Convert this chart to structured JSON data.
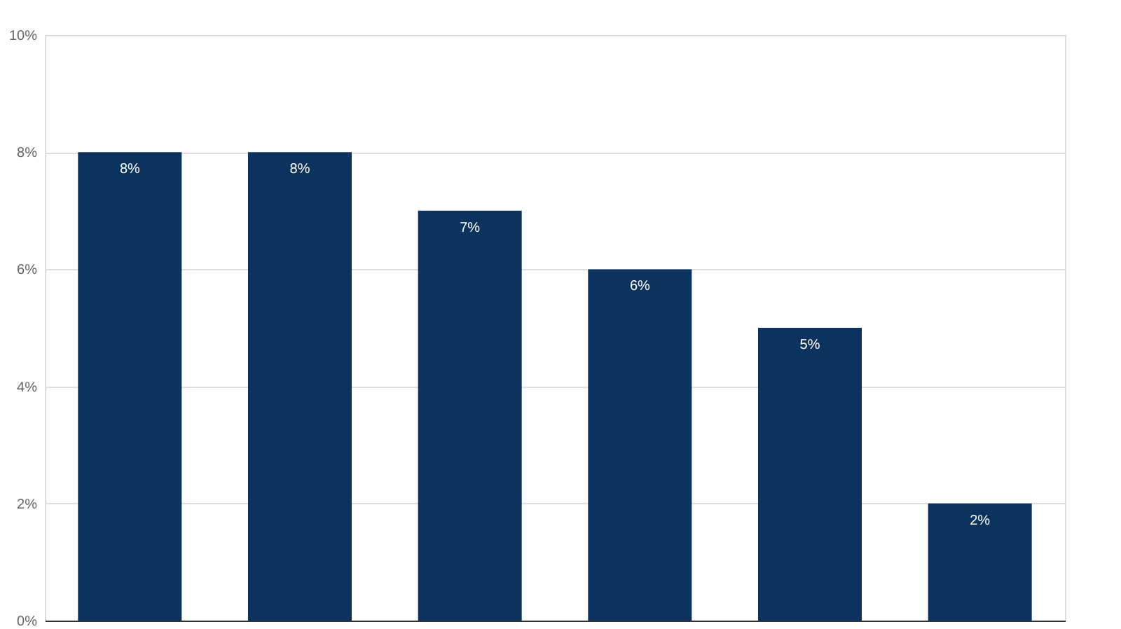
{
  "chart_data": {
    "type": "bar",
    "categories": [
      null,
      null,
      null,
      null,
      null,
      null
    ],
    "values": [
      8,
      8,
      7,
      6,
      5,
      2
    ],
    "value_labels": [
      "8%",
      "8%",
      "7%",
      "6%",
      "5%",
      "2%"
    ],
    "color": "#0b335e",
    "ylim": [
      0,
      10
    ],
    "yticks": [
      {
        "value": 0,
        "label": "0%"
      },
      {
        "value": 2,
        "label": "2%"
      },
      {
        "value": 4,
        "label": "4%"
      },
      {
        "value": 6,
        "label": "6%"
      },
      {
        "value": 8,
        "label": "8%"
      },
      {
        "value": 10,
        "label": "10%"
      }
    ],
    "grid": "y"
  }
}
